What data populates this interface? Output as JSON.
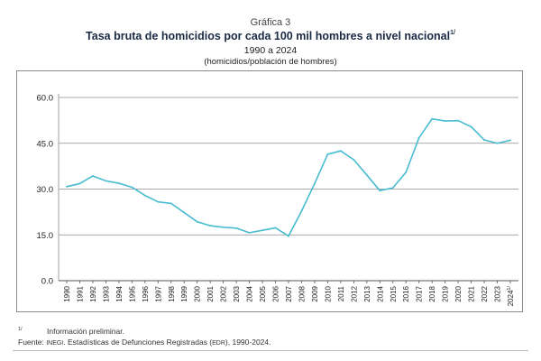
{
  "header": {
    "label": "Gráfica 3",
    "title": "Tasa bruta de homicidios por cada 100 mil hombres a nivel nacional",
    "title_mark": "1/",
    "period": "1990 a 2024",
    "units": "(homicidios/población de hombres)"
  },
  "footer": {
    "note_mark": "1/",
    "note_text": "Información preliminar.",
    "source_prefix": "Fuente: ",
    "source_org": "INEGI",
    "source_mid": ". Estadísticas de Defunciones Registradas (",
    "source_abbr": "EDR",
    "source_end": "), 1990-2024."
  },
  "colors": {
    "line": "#48bcd0",
    "grid": "#8c8c8c",
    "axis": "#555555"
  },
  "chart_data": {
    "type": "line",
    "title": "Tasa bruta de homicidios por cada 100 mil hombres a nivel nacional",
    "xlabel": "",
    "ylabel": "",
    "ylim": [
      0,
      60
    ],
    "yticks": [
      "0.0",
      "15.0",
      "30.0",
      "45.0",
      "60.0"
    ],
    "grid": true,
    "legend": "none",
    "categories": [
      "1990",
      "1991",
      "1992",
      "1993",
      "1994",
      "1995",
      "1996",
      "1997",
      "1998",
      "1999",
      "2000",
      "2001",
      "2002",
      "2003",
      "2004",
      "2005",
      "2006",
      "2007",
      "2008",
      "2009",
      "2010",
      "2011",
      "2012",
      "2013",
      "2014",
      "2015",
      "2016",
      "2017",
      "2018",
      "2019",
      "2020",
      "2021",
      "2022",
      "2023",
      "2024"
    ],
    "last_mark": "1/",
    "series": [
      {
        "values": [
          30.8,
          31.8,
          34.3,
          32.7,
          31.9,
          30.6,
          27.9,
          25.8,
          25.3,
          22.3,
          19.3,
          18.0,
          17.5,
          17.2,
          15.7,
          16.5,
          17.3,
          14.6,
          22.8,
          31.8,
          41.4,
          42.5,
          39.6,
          34.6,
          29.5,
          30.4,
          35.5,
          46.8,
          53.0,
          52.3,
          52.4,
          50.4,
          46.1,
          45.0,
          46.0
        ]
      }
    ]
  }
}
